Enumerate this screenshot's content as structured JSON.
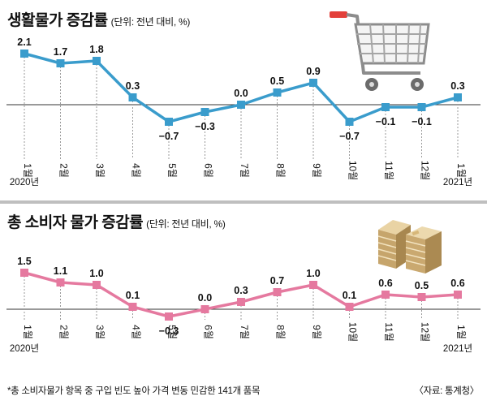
{
  "colors": {
    "series1": "#3a9ccc",
    "series2": "#e5799f",
    "grid": "#9a9a9a",
    "baseline": "#333333"
  },
  "chart_data": [
    {
      "type": "line",
      "title": "생활물가 증감률",
      "unit_note": "(단위: 전년 대비, %)",
      "categories": [
        "1월",
        "2월",
        "3월",
        "4월",
        "5월",
        "6월",
        "7월",
        "8월",
        "9월",
        "10월",
        "11월",
        "12월",
        "1월"
      ],
      "sub_labels": [
        "2020년",
        "",
        "",
        "",
        "",
        "",
        "",
        "",
        "",
        "",
        "",
        "",
        "2021년"
      ],
      "values": [
        2.1,
        1.7,
        1.8,
        0.3,
        -0.7,
        -0.3,
        0.0,
        0.5,
        0.9,
        -0.7,
        -0.1,
        -0.1,
        0.3
      ],
      "value_labels": [
        "2.1",
        "1.7",
        "1.8",
        "0.3",
        "−0.7",
        "−0.3",
        "0.0",
        "0.5",
        "0.9",
        "−0.7",
        "−0.1",
        "−0.1",
        "0.3"
      ],
      "ylim": [
        -1,
        2.5
      ],
      "baseline": 0,
      "icon": "shopping-cart-icon"
    },
    {
      "type": "line",
      "title": "총 소비자 물가 증감률",
      "unit_note": "(단위: 전년 대비, %)",
      "categories": [
        "1월",
        "2월",
        "3월",
        "4월",
        "5월",
        "6월",
        "7월",
        "8월",
        "9월",
        "10월",
        "11월",
        "12월",
        "1월"
      ],
      "sub_labels": [
        "2020년",
        "",
        "",
        "",
        "",
        "",
        "",
        "",
        "",
        "",
        "",
        "",
        "2021년"
      ],
      "values": [
        1.5,
        1.1,
        1.0,
        0.1,
        -0.3,
        0.0,
        0.3,
        0.7,
        1.0,
        0.1,
        0.6,
        0.5,
        0.6
      ],
      "value_labels": [
        "1.5",
        "1.1",
        "1.0",
        "0.1",
        "−0.3",
        "0.0",
        "0.3",
        "0.7",
        "1.0",
        "0.1",
        "0.6",
        "0.5",
        "0.6"
      ],
      "ylim": [
        -0.6,
        2.0
      ],
      "baseline": 0,
      "icon": "money-stack-icon"
    }
  ],
  "footnote": "*총 소비자물가 항목 중 구입 빈도 높아 가격 변동 민감한 141개 품목",
  "source": "〈자료: 통계청〉"
}
